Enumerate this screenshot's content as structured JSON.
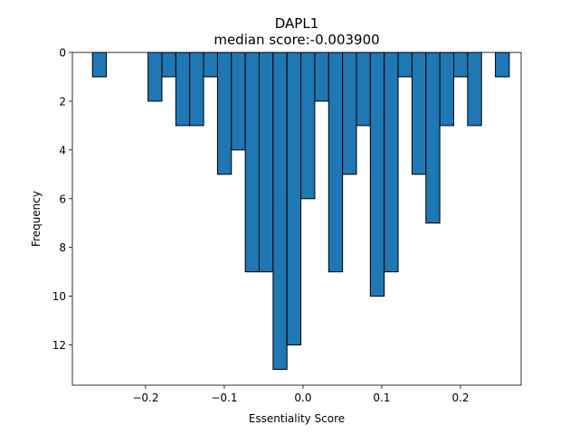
{
  "chart_data": {
    "type": "bar",
    "title": "DAPL1",
    "subtitle": "median score:-0.003900",
    "xlabel": "Essentiality Score",
    "ylabel": "Frequency",
    "y_inverted": true,
    "xlim": [
      -0.293,
      0.277
    ],
    "ylim": [
      0,
      13.65
    ],
    "xticks": [
      -0.2,
      -0.1,
      0.0,
      0.1,
      0.2
    ],
    "xtick_labels": [
      "−0.2",
      "−0.1",
      "0.0",
      "0.1",
      "0.2"
    ],
    "yticks": [
      0,
      2,
      4,
      6,
      8,
      10,
      12
    ],
    "ytick_labels": [
      "0",
      "2",
      "4",
      "6",
      "8",
      "10",
      "12"
    ],
    "bin_start": -0.2675,
    "bin_width": 0.01765,
    "values": [
      1,
      0,
      0,
      0,
      2,
      1,
      3,
      3,
      1,
      5,
      4,
      9,
      9,
      13,
      12,
      6,
      2,
      9,
      5,
      3,
      10,
      9,
      1,
      5,
      7,
      3,
      1,
      3,
      0,
      1
    ],
    "colors": {
      "bar_fill": "#1f77b4",
      "bar_edge": "#000000"
    },
    "grid": false,
    "legend": "none"
  }
}
